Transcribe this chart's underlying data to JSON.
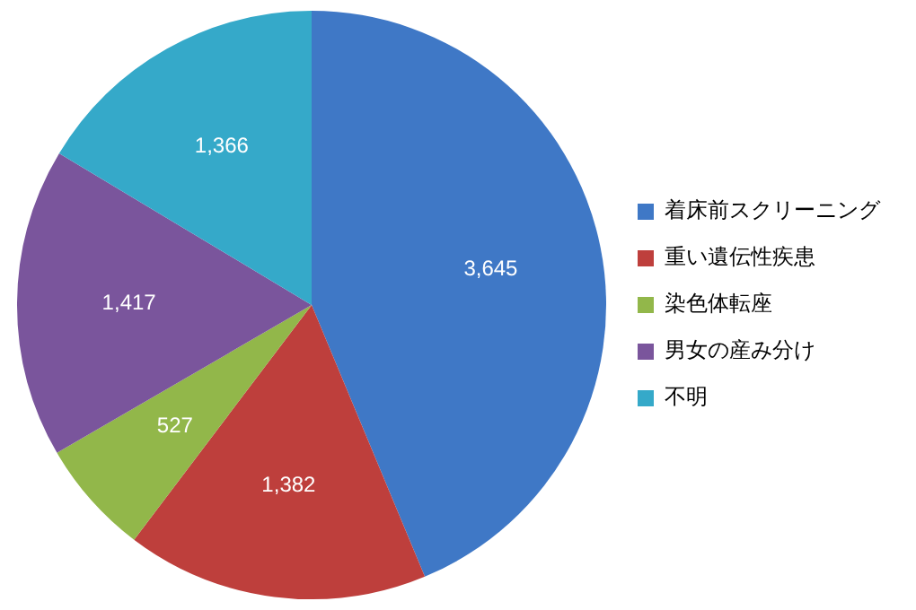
{
  "chart_data": {
    "type": "pie",
    "categories": [
      "着床前スクリーニング",
      "重い遺伝性疾患",
      "染色体転座",
      "男女の産み分け",
      "不明"
    ],
    "values": [
      3645,
      1382,
      527,
      1417,
      1366
    ],
    "colors": [
      "#3f78c6",
      "#be3f3c",
      "#92b74a",
      "#7a559c",
      "#35a9c9"
    ],
    "value_labels": [
      "3,645",
      "1,382",
      "527",
      "1,417",
      "1,366"
    ],
    "legend": "right"
  }
}
